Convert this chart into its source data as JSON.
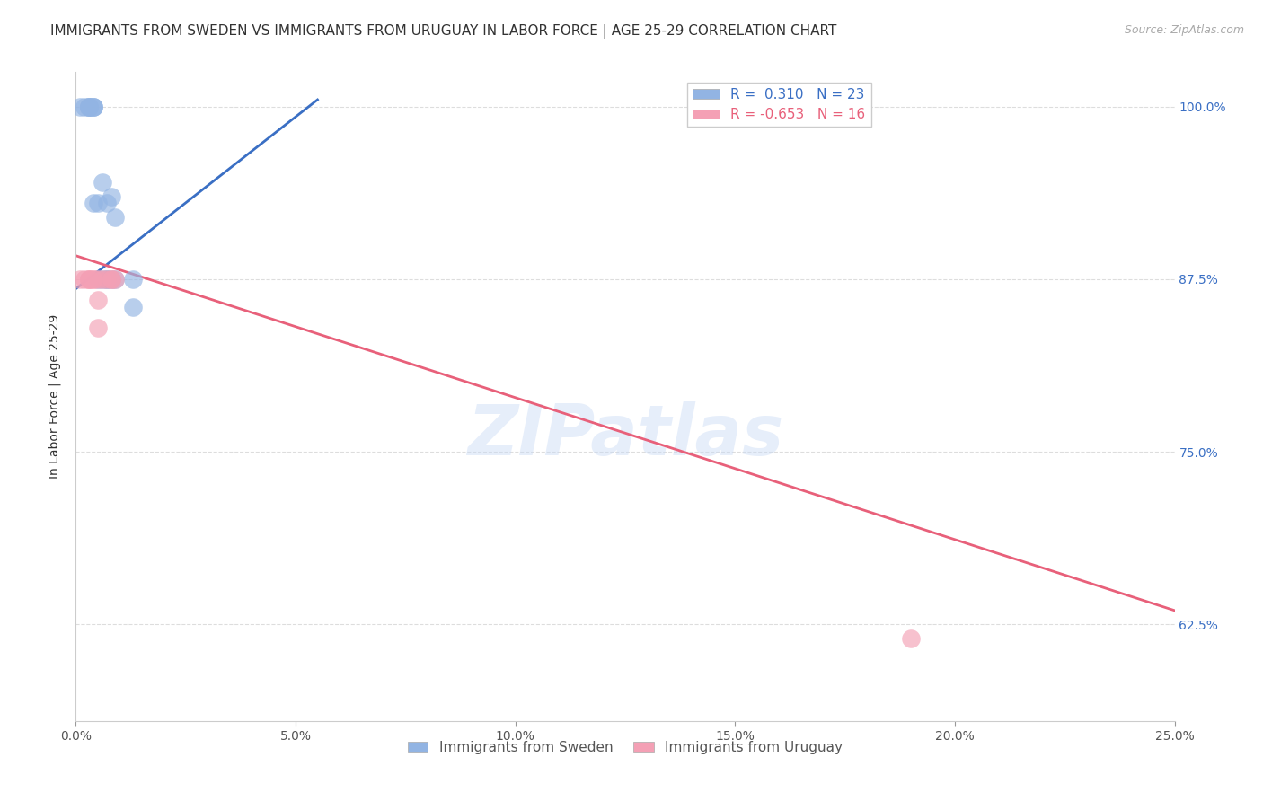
{
  "title": "IMMIGRANTS FROM SWEDEN VS IMMIGRANTS FROM URUGUAY IN LABOR FORCE | AGE 25-29 CORRELATION CHART",
  "source": "Source: ZipAtlas.com",
  "ylabel": "In Labor Force | Age 25-29",
  "xlabel_ticks": [
    "0.0%",
    "5.0%",
    "10.0%",
    "15.0%",
    "20.0%",
    "25.0%"
  ],
  "ylabel_ticks": [
    "62.5%",
    "75.0%",
    "87.5%",
    "100.0%"
  ],
  "xlim": [
    0.0,
    0.25
  ],
  "ylim": [
    0.555,
    1.025
  ],
  "sweden_color": "#92b4e3",
  "uruguay_color": "#f4a0b5",
  "sweden_line_color": "#3a6fc4",
  "uruguay_line_color": "#e8607a",
  "watermark": "ZIPatlas",
  "sweden_x": [
    0.001,
    0.002,
    0.003,
    0.003,
    0.003,
    0.003,
    0.004,
    0.004,
    0.004,
    0.004,
    0.005,
    0.005,
    0.006,
    0.006,
    0.007,
    0.007,
    0.007,
    0.008,
    0.008,
    0.009,
    0.009,
    0.013,
    0.013
  ],
  "sweden_y": [
    1.0,
    1.0,
    1.0,
    1.0,
    1.0,
    1.0,
    1.0,
    1.0,
    1.0,
    0.93,
    0.93,
    0.875,
    0.945,
    0.875,
    0.93,
    0.875,
    0.875,
    0.935,
    0.875,
    0.92,
    0.875,
    0.855,
    0.875
  ],
  "uruguay_x": [
    0.001,
    0.002,
    0.003,
    0.003,
    0.003,
    0.004,
    0.004,
    0.005,
    0.005,
    0.005,
    0.006,
    0.007,
    0.008,
    0.008,
    0.009,
    0.19
  ],
  "uruguay_y": [
    0.875,
    0.875,
    0.875,
    0.875,
    0.875,
    0.875,
    0.875,
    0.86,
    0.84,
    0.875,
    0.875,
    0.875,
    0.875,
    0.875,
    0.875,
    0.615
  ],
  "sweden_trendline_x": [
    0.0,
    0.055
  ],
  "sweden_trendline_y": [
    0.868,
    1.005
  ],
  "uruguay_trendline_x": [
    0.0,
    0.25
  ],
  "uruguay_trendline_y": [
    0.892,
    0.635
  ],
  "grid_color": "#dddddd",
  "background_color": "#ffffff",
  "title_fontsize": 11,
  "axis_label_fontsize": 10,
  "tick_fontsize": 10,
  "legend_fontsize": 11
}
